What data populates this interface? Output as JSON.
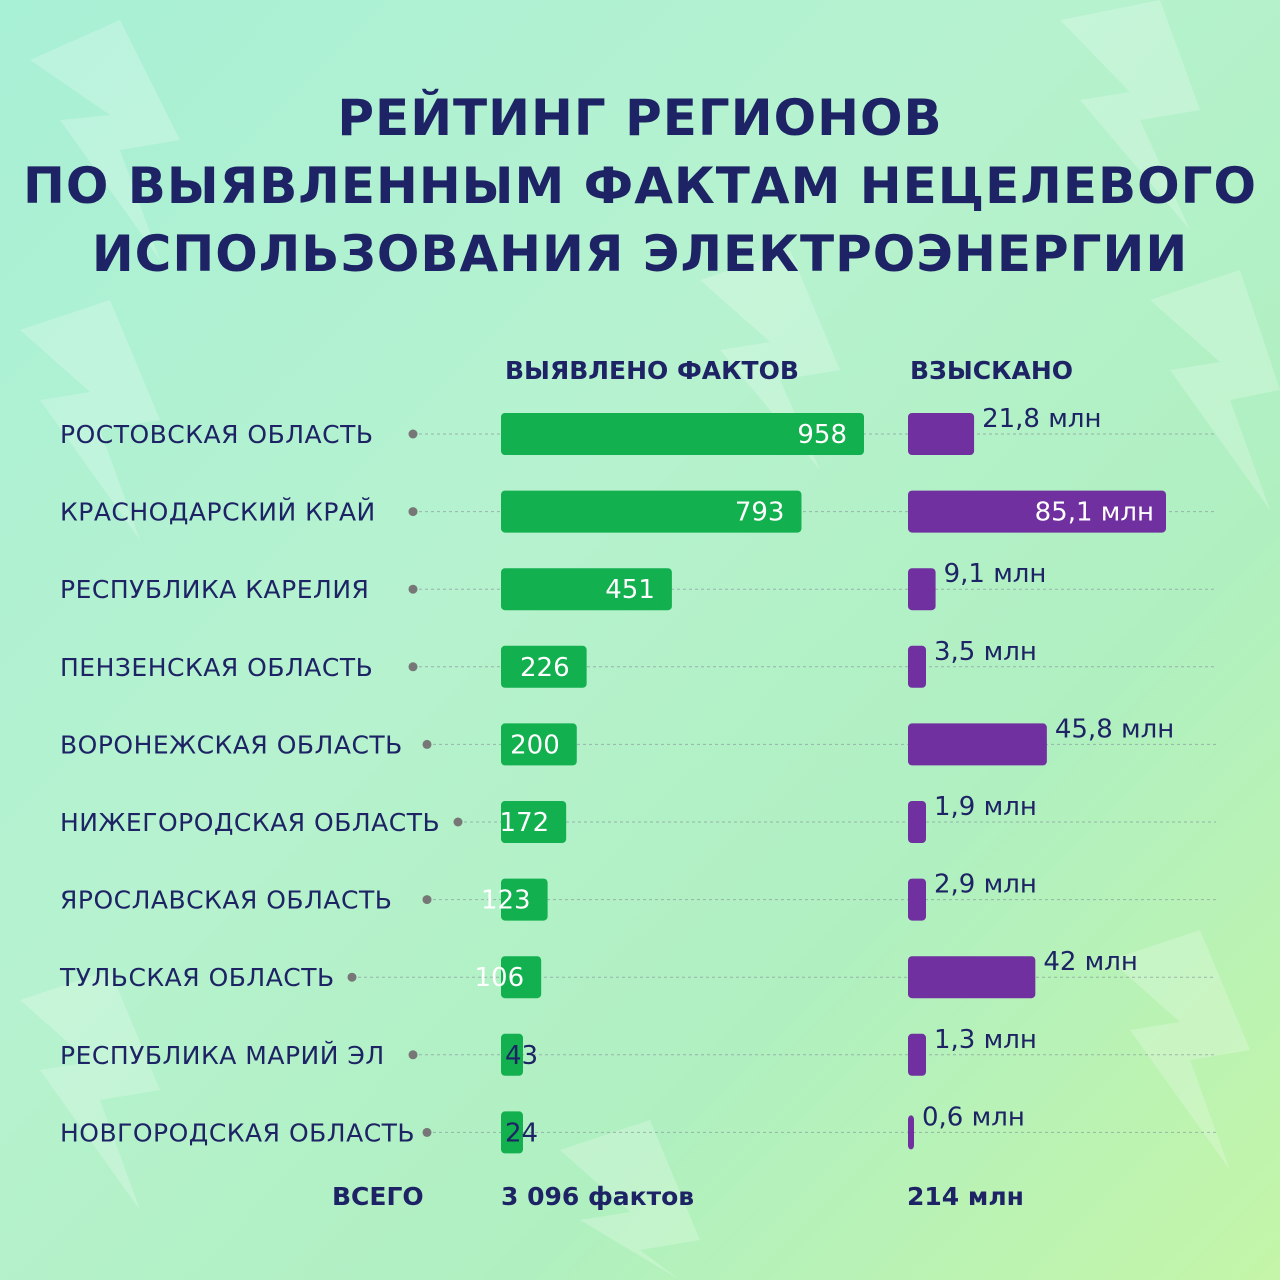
{
  "title": {
    "line1": "РЕЙТИНГ РЕГИОНОВ",
    "line2": "ПО ВЫЯВЛЕННЫМ ФАКТАМ НЕЦЕЛЕВОГО",
    "line3": "ИСПОЛЬЗОВАНИЯ ЭЛЕКТРОЭНЕРГИИ"
  },
  "headers": {
    "facts": "ВЫЯВЛЕНО ФАКТОВ",
    "collected": "ВЗЫСКАНО"
  },
  "totals": {
    "label": "ВСЕГО",
    "facts": "3 096 фактов",
    "collected": "214 млн"
  },
  "colors": {
    "facts_bar": "#12b04e",
    "collected_bar": "#7030a0",
    "text": "#1d2364",
    "bar_text": "#ffffff",
    "dot": "#777777"
  },
  "chart_data": {
    "type": "bar",
    "orientation": "horizontal",
    "categories": [
      "РОСТОВСКАЯ ОБЛАСТЬ",
      "КРАСНОДАРСКИЙ КРАЙ",
      "РЕСПУБЛИКА КАРЕЛИЯ",
      "ПЕНЗЕНСКАЯ ОБЛАСТЬ",
      "ВОРОНЕЖСКАЯ ОБЛАСТЬ",
      "НИЖЕГОРОДСКАЯ ОБЛАСТЬ",
      "ЯРОСЛАВСКАЯ ОБЛАСТЬ",
      "ТУЛЬСКАЯ ОБЛАСТЬ",
      "РЕСПУБЛИКА МАРИЙ ЭЛ",
      "НОВГОРОДСКАЯ ОБЛАСТЬ"
    ],
    "series": [
      {
        "name": "ВЫЯВЛЕНО ФАКТОВ",
        "values": [
          958,
          793,
          451,
          226,
          200,
          172,
          123,
          106,
          43,
          24
        ],
        "labels": [
          "958",
          "793",
          "451",
          "226",
          "200",
          "172",
          "123",
          "106",
          "43",
          "24"
        ]
      },
      {
        "name": "ВЗЫСКАНО",
        "values": [
          21.8,
          85.1,
          9.1,
          3.5,
          45.8,
          1.9,
          2.9,
          42,
          1.3,
          0.6
        ],
        "labels": [
          "21,8 млн",
          "85,1 млн",
          "9,1 млн",
          "3,5 млн",
          "45,8 млн",
          "1,9 млн",
          "2,9 млн",
          "42 млн",
          "1,3 млн",
          "0,6 млн"
        ]
      }
    ]
  }
}
